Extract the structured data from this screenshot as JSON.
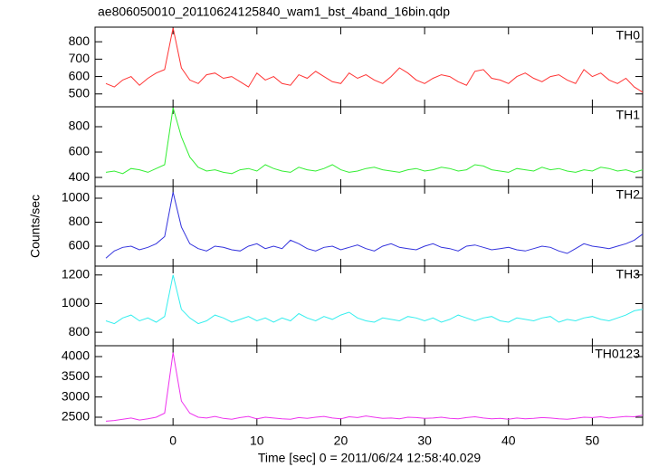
{
  "chart_data": {
    "type": "line",
    "title": "ae806050010_20110624125840_wam1_bst_4band_16bin.qdp",
    "xlabel": "Time [sec] 0 = 2011/06/24 12:58:40.029",
    "ylabel": "Counts/sec",
    "xlim": [
      -9.3,
      56
    ],
    "xticks": [
      0,
      10,
      20,
      30,
      40,
      50
    ],
    "x": [
      -8,
      -7,
      -6,
      -5,
      -4,
      -3,
      -2,
      -1,
      0,
      1,
      2,
      3,
      4,
      5,
      6,
      7,
      8,
      9,
      10,
      11,
      12,
      13,
      14,
      15,
      16,
      17,
      18,
      19,
      20,
      21,
      22,
      23,
      24,
      25,
      26,
      27,
      28,
      29,
      30,
      31,
      32,
      33,
      34,
      35,
      36,
      37,
      38,
      39,
      40,
      41,
      42,
      43,
      44,
      45,
      46,
      47,
      48,
      49,
      50,
      51,
      52,
      53,
      54,
      55,
      56
    ],
    "series": [
      {
        "name": "TH0",
        "color": "#ff3333",
        "ylim": [
          426,
          884
        ],
        "yticks": [
          500,
          600,
          700,
          800
        ],
        "values": [
          560,
          540,
          580,
          600,
          550,
          590,
          620,
          640,
          880,
          650,
          580,
          560,
          610,
          620,
          590,
          600,
          570,
          540,
          620,
          580,
          600,
          560,
          550,
          610,
          590,
          630,
          600,
          570,
          560,
          620,
          590,
          610,
          580,
          560,
          600,
          650,
          620,
          580,
          560,
          590,
          610,
          600,
          570,
          550,
          630,
          640,
          590,
          580,
          560,
          600,
          620,
          590,
          570,
          600,
          610,
          580,
          560,
          640,
          600,
          620,
          580,
          560,
          590,
          540,
          510
        ]
      },
      {
        "name": "TH1",
        "color": "#33ee33",
        "ylim": [
          329,
          957
        ],
        "yticks": [
          400,
          600,
          800
        ],
        "values": [
          440,
          450,
          430,
          470,
          460,
          440,
          470,
          500,
          950,
          720,
          560,
          480,
          450,
          460,
          440,
          430,
          460,
          470,
          450,
          500,
          470,
          450,
          440,
          480,
          460,
          450,
          470,
          500,
          460,
          440,
          450,
          470,
          480,
          460,
          450,
          440,
          460,
          470,
          450,
          460,
          480,
          470,
          450,
          460,
          500,
          490,
          460,
          450,
          440,
          470,
          460,
          450,
          480,
          460,
          470,
          450,
          440,
          460,
          450,
          480,
          470,
          450,
          460,
          440,
          460
        ]
      },
      {
        "name": "TH2",
        "color": "#3333dd",
        "ylim": [
          434,
          1098
        ],
        "yticks": [
          600,
          800,
          1000
        ],
        "values": [
          500,
          560,
          590,
          600,
          570,
          590,
          620,
          680,
          1050,
          760,
          620,
          580,
          560,
          600,
          590,
          570,
          560,
          600,
          620,
          580,
          600,
          580,
          650,
          620,
          580,
          560,
          590,
          600,
          570,
          590,
          610,
          580,
          560,
          600,
          620,
          590,
          580,
          570,
          600,
          620,
          590,
          580,
          560,
          600,
          610,
          590,
          570,
          580,
          590,
          570,
          560,
          580,
          600,
          590,
          560,
          540,
          580,
          620,
          600,
          590,
          580,
          600,
          620,
          650,
          700
        ]
      },
      {
        "name": "TH3",
        "color": "#33eeee",
        "ylim": [
          706,
          1262
        ],
        "yticks": [
          800,
          1000,
          1200
        ],
        "values": [
          880,
          860,
          900,
          920,
          880,
          900,
          870,
          910,
          1200,
          960,
          900,
          860,
          880,
          920,
          900,
          870,
          890,
          910,
          880,
          900,
          870,
          900,
          880,
          930,
          900,
          880,
          910,
          890,
          920,
          940,
          900,
          880,
          870,
          900,
          890,
          880,
          910,
          900,
          880,
          900,
          870,
          890,
          920,
          900,
          880,
          900,
          910,
          880,
          870,
          900,
          890,
          880,
          900,
          910,
          870,
          890,
          880,
          900,
          910,
          890,
          880,
          900,
          920,
          950,
          960
        ]
      },
      {
        "name": "TH0123",
        "color": "#ee33ee",
        "ylim": [
          2298,
          4269
        ],
        "yticks": [
          2500,
          3000,
          3500,
          4000
        ],
        "values": [
          2400,
          2420,
          2450,
          2480,
          2430,
          2460,
          2500,
          2600,
          4100,
          2900,
          2600,
          2500,
          2480,
          2520,
          2470,
          2450,
          2490,
          2520,
          2460,
          2500,
          2480,
          2460,
          2450,
          2490,
          2470,
          2500,
          2520,
          2480,
          2460,
          2510,
          2490,
          2530,
          2500,
          2470,
          2480,
          2460,
          2500,
          2490,
          2470,
          2480,
          2500,
          2470,
          2460,
          2490,
          2510,
          2480,
          2460,
          2470,
          2450,
          2480,
          2460,
          2470,
          2490,
          2480,
          2460,
          2450,
          2470,
          2500,
          2490,
          2510,
          2480,
          2500,
          2520,
          2510,
          2550
        ]
      }
    ]
  }
}
